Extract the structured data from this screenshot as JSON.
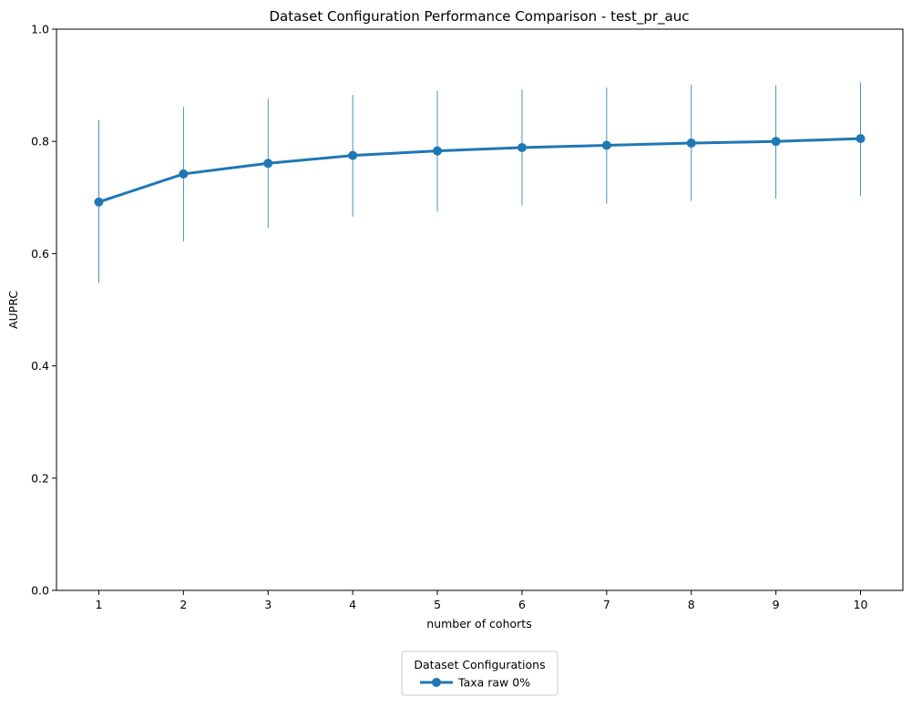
{
  "chart_data": {
    "type": "line",
    "title": "Dataset Configuration Performance Comparison - test_pr_auc",
    "xlabel": "number of cohorts",
    "ylabel": "AUPRC",
    "x": [
      1,
      2,
      3,
      4,
      5,
      6,
      7,
      8,
      9,
      10
    ],
    "xlim": [
      0.5,
      10.5
    ],
    "ylim": [
      0.0,
      1.0
    ],
    "x_ticks": [
      "1",
      "2",
      "3",
      "4",
      "5",
      "6",
      "7",
      "8",
      "9",
      "10"
    ],
    "y_ticks": [
      "0.0",
      "0.2",
      "0.4",
      "0.6",
      "0.8",
      "1.0"
    ],
    "grid": false,
    "legend": {
      "title": "Dataset Configurations",
      "placement": "bottom-center"
    },
    "series": [
      {
        "name": "Taxa raw 0%",
        "color": "#1f77b4",
        "values": [
          0.692,
          0.742,
          0.761,
          0.775,
          0.783,
          0.789,
          0.793,
          0.797,
          0.8,
          0.805
        ],
        "error_low": [
          0.548,
          0.622,
          0.646,
          0.666,
          0.675,
          0.686,
          0.689,
          0.694,
          0.698,
          0.703
        ],
        "error_high": [
          0.838,
          0.861,
          0.876,
          0.883,
          0.89,
          0.893,
          0.896,
          0.901,
          0.9,
          0.905
        ]
      }
    ]
  }
}
